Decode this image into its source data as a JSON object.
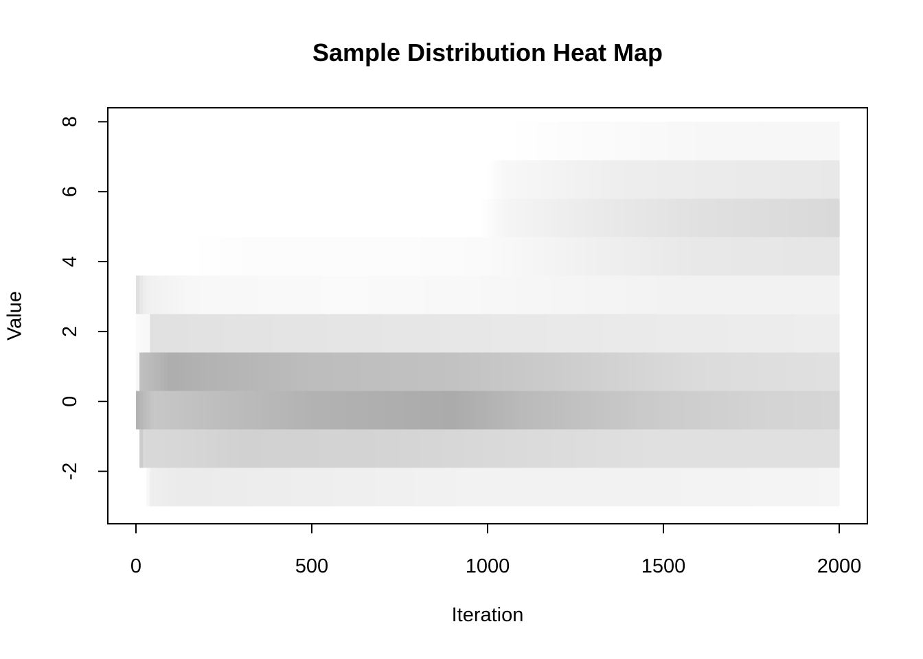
{
  "chart_data": {
    "type": "heatmap",
    "title": "Sample Distribution Heat Map",
    "xlabel": "Iteration",
    "ylabel": "Value",
    "xlim": [
      -80,
      2080
    ],
    "ylim": [
      -3.5,
      8.4
    ],
    "x_ticks": [
      0,
      500,
      1000,
      1500,
      2000
    ],
    "y_ticks": [
      -2,
      0,
      2,
      4,
      6,
      8
    ],
    "grid": false,
    "legend": "none",
    "color_scale": {
      "low": "#ffffff",
      "high": "#000000",
      "note_max_intensity": 1.0
    },
    "bins": [
      {
        "y0": -3.0,
        "y1": -1.9,
        "profile": [
          [
            0,
            0.0
          ],
          [
            30,
            0.0
          ],
          [
            40,
            0.06
          ],
          [
            120,
            0.08
          ],
          [
            400,
            0.07
          ],
          [
            1000,
            0.05
          ],
          [
            1500,
            0.05
          ],
          [
            2000,
            0.04
          ]
        ]
      },
      {
        "y0": -1.9,
        "y1": -0.8,
        "profile": [
          [
            0,
            0.0
          ],
          [
            8,
            0.0
          ],
          [
            10,
            0.25
          ],
          [
            20,
            0.15
          ],
          [
            150,
            0.16
          ],
          [
            300,
            0.18
          ],
          [
            700,
            0.17
          ],
          [
            1000,
            0.15
          ],
          [
            1500,
            0.12
          ],
          [
            2000,
            0.12
          ]
        ]
      },
      {
        "y0": -0.8,
        "y1": 0.3,
        "profile": [
          [
            0,
            0.6
          ],
          [
            5,
            0.3
          ],
          [
            50,
            0.22
          ],
          [
            200,
            0.25
          ],
          [
            500,
            0.3
          ],
          [
            900,
            0.33
          ],
          [
            1100,
            0.27
          ],
          [
            1500,
            0.2
          ],
          [
            1800,
            0.17
          ],
          [
            2000,
            0.16
          ]
        ]
      },
      {
        "y0": 0.3,
        "y1": 1.4,
        "profile": [
          [
            0,
            0.0
          ],
          [
            8,
            0.05
          ],
          [
            15,
            0.25
          ],
          [
            100,
            0.32
          ],
          [
            200,
            0.3
          ],
          [
            500,
            0.26
          ],
          [
            900,
            0.24
          ],
          [
            1200,
            0.2
          ],
          [
            1600,
            0.14
          ],
          [
            2000,
            0.12
          ]
        ]
      },
      {
        "y0": 1.4,
        "y1": 2.5,
        "profile": [
          [
            0,
            0.02
          ],
          [
            40,
            0.03
          ],
          [
            45,
            0.12
          ],
          [
            300,
            0.11
          ],
          [
            700,
            0.1
          ],
          [
            1100,
            0.09
          ],
          [
            1500,
            0.08
          ],
          [
            2000,
            0.07
          ]
        ]
      },
      {
        "y0": 2.5,
        "y1": 3.6,
        "profile": [
          [
            0,
            0.7
          ],
          [
            5,
            0.12
          ],
          [
            30,
            0.06
          ],
          [
            150,
            0.03
          ],
          [
            600,
            0.02
          ],
          [
            1000,
            0.03
          ],
          [
            1500,
            0.05
          ],
          [
            2000,
            0.05
          ]
        ]
      },
      {
        "y0": 3.6,
        "y1": 4.7,
        "profile": [
          [
            0,
            0.0
          ],
          [
            150,
            0.0
          ],
          [
            300,
            0.01
          ],
          [
            700,
            0.01
          ],
          [
            1000,
            0.02
          ],
          [
            1300,
            0.06
          ],
          [
            1600,
            0.09
          ],
          [
            2000,
            0.1
          ]
        ]
      },
      {
        "y0": 4.7,
        "y1": 5.8,
        "profile": [
          [
            0,
            0.0
          ],
          [
            980,
            0.0
          ],
          [
            1050,
            0.04
          ],
          [
            1300,
            0.08
          ],
          [
            1600,
            0.12
          ],
          [
            2000,
            0.15
          ]
        ]
      },
      {
        "y0": 5.8,
        "y1": 6.9,
        "profile": [
          [
            0,
            0.0
          ],
          [
            1000,
            0.0
          ],
          [
            1050,
            0.03
          ],
          [
            1400,
            0.07
          ],
          [
            1700,
            0.08
          ],
          [
            2000,
            0.09
          ]
        ]
      },
      {
        "y0": 6.9,
        "y1": 8.0,
        "profile": [
          [
            0,
            0.0
          ],
          [
            1050,
            0.0
          ],
          [
            1200,
            0.01
          ],
          [
            1600,
            0.03
          ],
          [
            2000,
            0.03
          ]
        ]
      }
    ]
  }
}
